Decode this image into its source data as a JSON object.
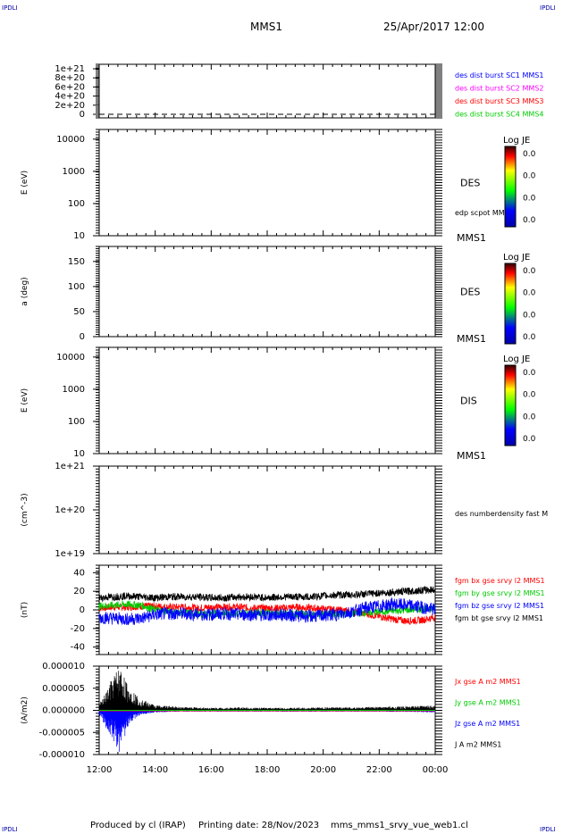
{
  "header": {
    "mission": "MMS1",
    "datetime": "25/Apr/2017 12:00",
    "corner_left": "IPDLI",
    "corner_right": "IPDLI",
    "corner_bottom_left": "IPDLI",
    "corner_bottom_right": "IPDLI"
  },
  "footer": {
    "produced_by": "Produced by cl (IRAP)",
    "printing_date": "Printing date: 28/Nov/2023",
    "file": "mms_mms1_srvy_vue_web1.cl"
  },
  "colors": {
    "blue": "#0000ff",
    "magenta": "#ff00ff",
    "red": "#ff0000",
    "green": "#00cc00",
    "black": "#000000"
  },
  "chart_data": [
    {
      "type": "line",
      "panel": "dist-burst",
      "yticks": [
        "1e+21",
        "8e+20",
        "6e+20",
        "4e+20",
        "2e+20",
        "0"
      ],
      "ylim": [
        0,
        1e+21
      ],
      "ylabel": "",
      "baseline_dashed": 0,
      "legend": [
        {
          "label": "des dist burst SC1 MMS1",
          "color": "#0000ff"
        },
        {
          "label": "des dist burst SC2 MMS2",
          "color": "#ff00ff"
        },
        {
          "label": "des dist burst SC3 MMS3",
          "color": "#ff0000"
        },
        {
          "label": "des dist burst SC4 MMS4",
          "color": "#00cc00"
        }
      ]
    },
    {
      "type": "heatmap",
      "panel": "des-energy",
      "ylabel": "E (eV)",
      "yticks": [
        "10000",
        "1000",
        "100",
        "10"
      ],
      "ylog": true,
      "ylim": [
        10,
        20000
      ],
      "side_label": "DES",
      "overlay_label": "edp scpot MMS1",
      "bottom_label": "MMS1",
      "colorbar": {
        "title": "Log JE",
        "ticks": [
          "0.0",
          "0.0",
          "0.0",
          "0.0"
        ]
      }
    },
    {
      "type": "heatmap",
      "panel": "des-pitch",
      "ylabel": "a (deg)",
      "yticks": [
        "150",
        "100",
        "50",
        "0"
      ],
      "ylim": [
        0,
        180
      ],
      "side_label": "DES",
      "bottom_label": "MMS1",
      "colorbar": {
        "title": "Log JE",
        "ticks": [
          "0.0",
          "0.0",
          "0.0",
          "0.0"
        ]
      }
    },
    {
      "type": "heatmap",
      "panel": "dis-energy",
      "ylabel": "E (eV)",
      "yticks": [
        "10000",
        "1000",
        "100",
        "10"
      ],
      "ylog": true,
      "ylim": [
        10,
        20000
      ],
      "side_label": "DIS",
      "bottom_label": "MMS1",
      "colorbar": {
        "title": "Log JE",
        "ticks": [
          "0.0",
          "0.0",
          "0.0",
          "0.0"
        ]
      }
    },
    {
      "type": "line",
      "panel": "density",
      "ylabel": "(cm^-3)",
      "yticks": [
        "1e+21",
        "1e+20",
        "1e+19"
      ],
      "ylog": true,
      "ylim": [
        1e+19,
        1e+21
      ],
      "legend": [
        {
          "label": "des numberdensity fast M",
          "color": "#000000"
        }
      ]
    },
    {
      "type": "line",
      "panel": "magnetic-field",
      "ylabel": "(nT)",
      "yticks": [
        "40",
        "20",
        "0",
        "-20",
        "-40"
      ],
      "ylim": [
        -48,
        48
      ],
      "legend": [
        {
          "label": "fgm bx gse srvy l2 MMS1",
          "color": "#ff0000"
        },
        {
          "label": "fgm by gse srvy l2 MMS1",
          "color": "#00cc00"
        },
        {
          "label": "fgm bz gse srvy l2 MMS1",
          "color": "#0000ff"
        },
        {
          "label": "fgm bt gse srvy l2 MMS1",
          "color": "#000000"
        }
      ],
      "x_hours": [
        12,
        12.5,
        13,
        13.5,
        14,
        14.5,
        15,
        15.5,
        16,
        16.5,
        17,
        17.5,
        18,
        18.5,
        19,
        19.5,
        20,
        20.5,
        21,
        21.5,
        22,
        22.5,
        23,
        23.5,
        24
      ],
      "series": [
        {
          "name": "bt",
          "values": [
            13,
            14,
            15,
            14,
            13,
            14,
            14,
            14,
            13,
            13,
            14,
            14,
            13,
            14,
            14,
            14,
            15,
            16,
            16,
            17,
            18,
            19,
            20,
            21,
            22
          ]
        },
        {
          "name": "bx",
          "values": [
            2,
            3,
            3,
            4,
            4,
            3,
            3,
            2,
            3,
            3,
            3,
            2,
            2,
            2,
            3,
            2,
            1,
            0,
            -2,
            -4,
            -7,
            -10,
            -12,
            -11,
            -8
          ]
        },
        {
          "name": "by",
          "values": [
            4,
            5,
            6,
            5,
            0,
            -2,
            -3,
            -4,
            -4,
            -4,
            -4,
            -3,
            -3,
            -4,
            -4,
            -5,
            -5,
            -5,
            -4,
            -3,
            -2,
            -1,
            0,
            1,
            2
          ]
        },
        {
          "name": "bz",
          "values": [
            -8,
            -9,
            -10,
            -9,
            -5,
            -4,
            -4,
            -5,
            -5,
            -4,
            -5,
            -5,
            -6,
            -5,
            -6,
            -7,
            -6,
            -5,
            -2,
            2,
            4,
            6,
            5,
            3,
            0
          ]
        }
      ]
    },
    {
      "type": "line",
      "panel": "current-density",
      "ylabel": "(A/m2)",
      "yticks": [
        "0.000010",
        "0.000005",
        "0.000000",
        "-0.000005",
        "-0.000010"
      ],
      "ylim": [
        -1e-05,
        1e-05
      ],
      "legend": [
        {
          "label": "Jx gse A m2 MMS1",
          "color": "#ff0000"
        },
        {
          "label": "Jy gse A m2 MMS1",
          "color": "#00cc00"
        },
        {
          "label": "Jz gse A m2 MMS1",
          "color": "#0000ff"
        },
        {
          "label": "J A m2 MMS1",
          "color": "#000000"
        }
      ],
      "x_hours": [
        12,
        12.25,
        12.5,
        12.75,
        13,
        13.25,
        13.5,
        14,
        15,
        16,
        17,
        18,
        19,
        20,
        21,
        22,
        23,
        24
      ],
      "series": [
        {
          "name": "J",
          "values": [
            1.5e-06,
            4e-06,
            8e-06,
            1e-05,
            6e-06,
            4e-06,
            2.5e-06,
            1.2e-06,
            8e-07,
            6e-07,
            7e-07,
            6e-07,
            6e-07,
            7e-07,
            7e-07,
            8e-07,
            9e-07,
            1.2e-06
          ]
        },
        {
          "name": "Jz",
          "values": [
            -1e-06,
            -4e-06,
            -7e-06,
            -1e-05,
            -4e-06,
            -2e-06,
            -1e-06,
            -5e-07,
            -3e-07,
            -3e-07,
            -3e-07,
            -3e-07,
            -3e-07,
            -3e-07,
            -3e-07,
            -3e-07,
            -4e-07,
            -5e-07
          ]
        }
      ]
    }
  ],
  "xaxis": {
    "ticks": [
      "12:00",
      "14:00",
      "16:00",
      "18:00",
      "20:00",
      "22:00",
      "00:00"
    ],
    "range_hours": [
      12,
      24
    ]
  }
}
